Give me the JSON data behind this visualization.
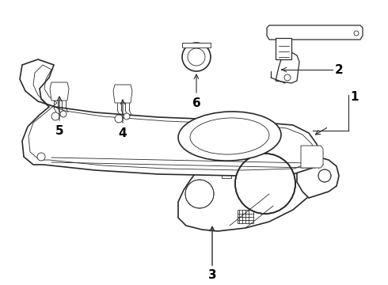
{
  "bg_color": "#ffffff",
  "line_color": "#2a2a2a",
  "label_color": "#000000",
  "label_fontsize": 11,
  "lw_main": 1.2,
  "lw_thin": 0.6,
  "lw_med": 0.9
}
